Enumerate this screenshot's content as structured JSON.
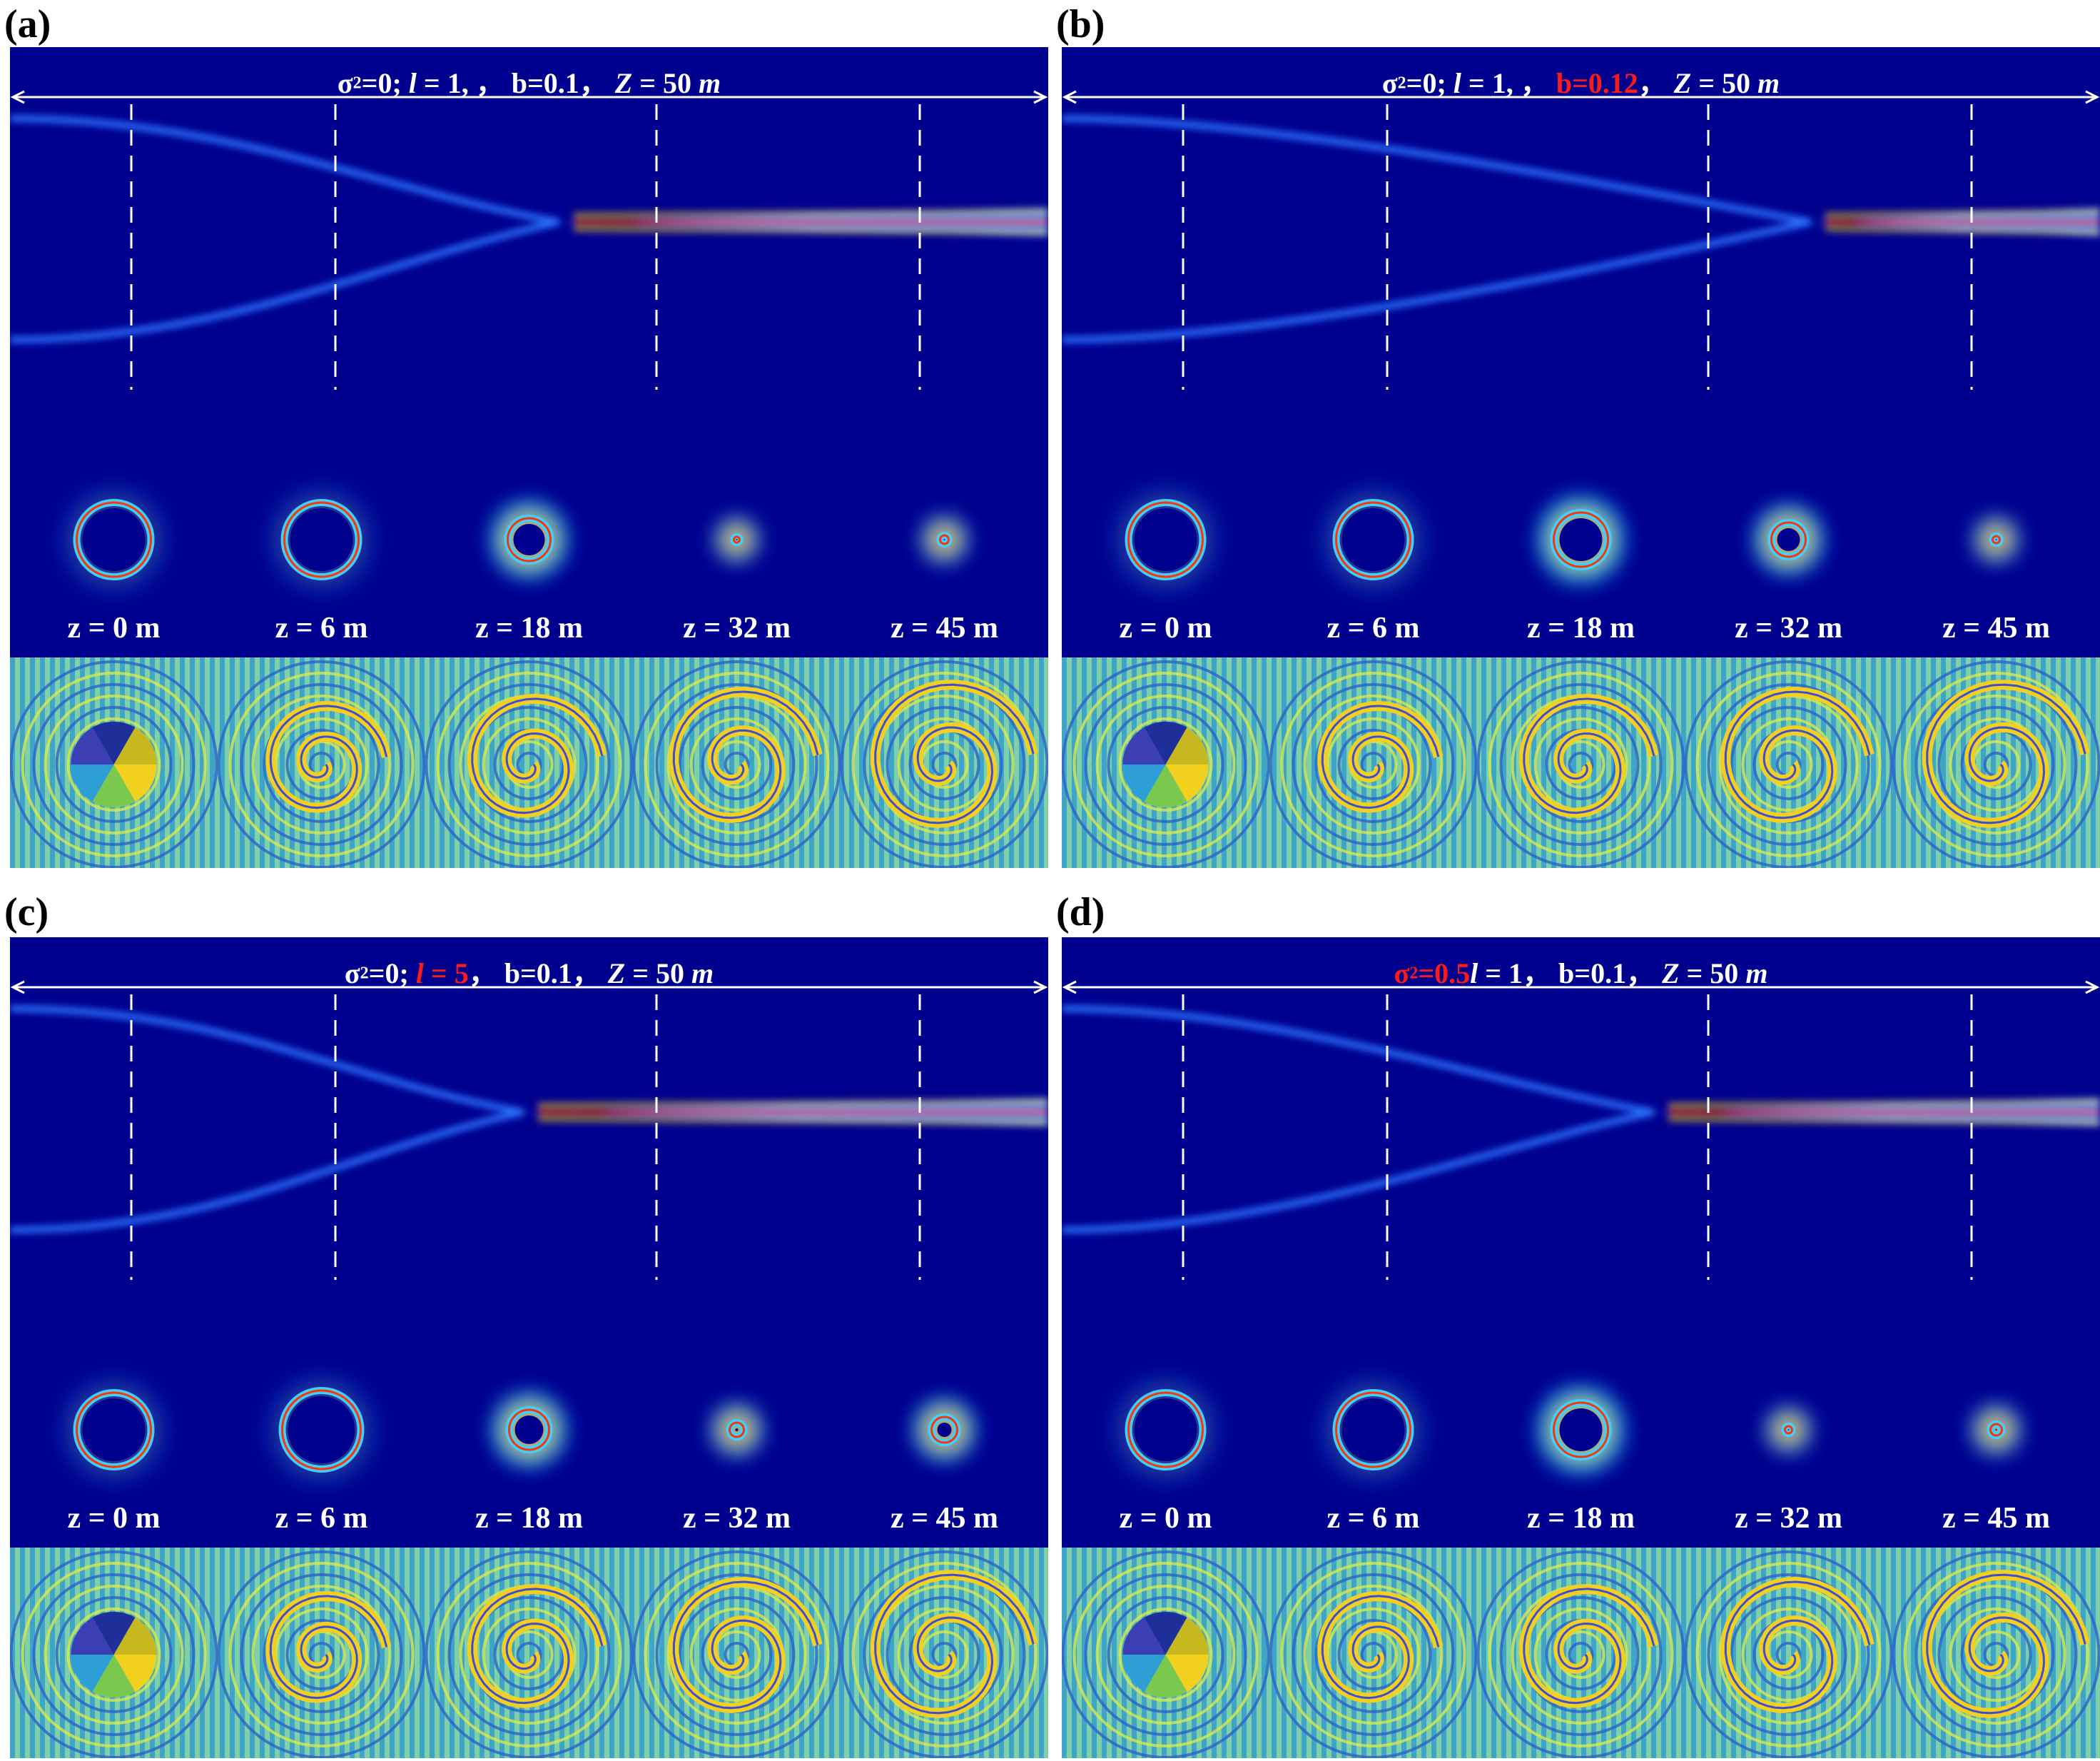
{
  "panels": [
    {
      "id": "a",
      "label": "(a)",
      "caption": {
        "sigma": "σ",
        "sigma_exp": "2",
        "sigma_rest": "=0; ",
        "l_sym": "l",
        "l_val": " = 1, ",
        "b": "b=0.1",
        "sep": "， ",
        "z_sym": "Z",
        "z_rest": " = 50 ",
        "unit": "m"
      },
      "highlight": "none",
      "z_labels": [
        "z = 0 m",
        "z = 6 m",
        "z = 18 m",
        "z = 32 m",
        "z = 45 m"
      ]
    },
    {
      "id": "b",
      "label": "(b)",
      "caption": {
        "sigma": "σ",
        "sigma_exp": "2",
        "sigma_rest": "=0; ",
        "l_sym": "l",
        "l_val": " = 1, ",
        "b": "b=0.12",
        "sep": "， ",
        "z_sym": "Z",
        "z_rest": " = 50 ",
        "unit": "m"
      },
      "highlight": "b",
      "z_labels": [
        "z = 0 m",
        "z = 6 m",
        "z = 18 m",
        "z = 32 m",
        "z = 45 m"
      ]
    },
    {
      "id": "c",
      "label": "(c)",
      "caption": {
        "sigma": "σ",
        "sigma_exp": "2",
        "sigma_rest": "=0; ",
        "l_sym": "l",
        "l_val": " = 5",
        "b": "b=0.1",
        "sep": "， ",
        "z_sym": "Z",
        "z_rest": " = 50 ",
        "unit": "m"
      },
      "highlight": "l",
      "z_labels": [
        "z = 0 m",
        "z = 6 m",
        "z = 18 m",
        "z = 32 m",
        "z = 45 m"
      ]
    },
    {
      "id": "d",
      "label": "(d)",
      "caption": {
        "sigma": "σ",
        "sigma_exp": "2",
        "sigma_rest": "=0.5",
        "l_sym": "l",
        "l_val": " = 1",
        "b": "b=0.1",
        "sep": "， ",
        "z_sym": "Z",
        "z_rest": " = 50 ",
        "unit": "m"
      },
      "highlight": "sigma",
      "z_labels": [
        "z = 0 m",
        "z = 6 m",
        "z = 18 m",
        "z = 32 m",
        "z = 45 m"
      ]
    }
  ],
  "colors": {
    "background": "#00008f",
    "line": "#ffffff",
    "highlight": "#ff1a1a"
  }
}
